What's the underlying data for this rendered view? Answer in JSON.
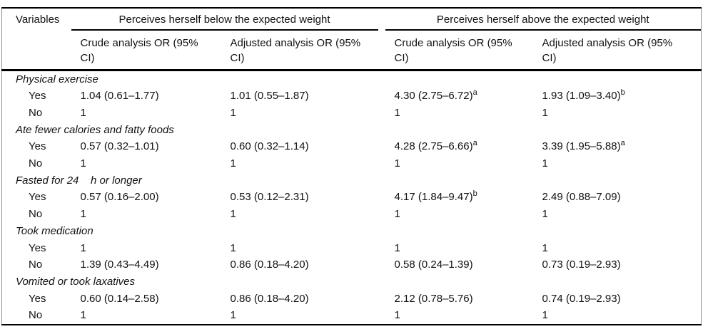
{
  "table": {
    "variables_header": "Variables",
    "col_groups": [
      {
        "label": "Perceives herself below the expected weight"
      },
      {
        "label": "Perceives herself above the expected weight"
      }
    ],
    "sub_headers": [
      {
        "line1": "Crude analysis OR (95%",
        "line2": "CI)"
      },
      {
        "line1": "Adjusted analysis OR (95%",
        "line2": "CI)"
      },
      {
        "line1": "Crude analysis OR (95%",
        "line2": "CI)"
      },
      {
        "line1": "Adjusted analysis OR (95%",
        "line2": "CI)"
      }
    ],
    "groups": [
      {
        "label": "Physical exercise",
        "rows": [
          {
            "label": "Yes",
            "values": [
              {
                "text": "1.04 (0.61–1.77)",
                "sup": ""
              },
              {
                "text": "1.01 (0.55–1.87)",
                "sup": ""
              },
              {
                "text": "4.30 (2.75–6.72)",
                "sup": "a"
              },
              {
                "text": "1.93 (1.09–3.40)",
                "sup": "b"
              }
            ]
          },
          {
            "label": "No",
            "values": [
              {
                "text": "1",
                "sup": ""
              },
              {
                "text": "1",
                "sup": ""
              },
              {
                "text": "1",
                "sup": ""
              },
              {
                "text": "1",
                "sup": ""
              }
            ]
          }
        ]
      },
      {
        "label": "Ate fewer calories and fatty foods",
        "rows": [
          {
            "label": "Yes",
            "values": [
              {
                "text": "0.57 (0.32–1.01)",
                "sup": ""
              },
              {
                "text": "0.60 (0.32–1.14)",
                "sup": ""
              },
              {
                "text": "4.28 (2.75–6.66)",
                "sup": "a"
              },
              {
                "text": "3.39 (1.95–5.88)",
                "sup": "a"
              }
            ]
          },
          {
            "label": "No",
            "values": [
              {
                "text": "1",
                "sup": ""
              },
              {
                "text": "1",
                "sup": ""
              },
              {
                "text": "1",
                "sup": ""
              },
              {
                "text": "1",
                "sup": ""
              }
            ]
          }
        ]
      },
      {
        "label": "Fasted for 24    h or longer",
        "rows": [
          {
            "label": "Yes",
            "values": [
              {
                "text": "0.57 (0.16–2.00)",
                "sup": ""
              },
              {
                "text": "0.53 (0.12–2.31)",
                "sup": ""
              },
              {
                "text": "4.17 (1.84–9.47)",
                "sup": "b"
              },
              {
                "text": "2.49 (0.88–7.09)",
                "sup": ""
              }
            ]
          },
          {
            "label": "No",
            "values": [
              {
                "text": "1",
                "sup": ""
              },
              {
                "text": "1",
                "sup": ""
              },
              {
                "text": "1",
                "sup": ""
              },
              {
                "text": "1",
                "sup": ""
              }
            ]
          }
        ]
      },
      {
        "label": "Took medication",
        "rows": [
          {
            "label": "Yes",
            "values": [
              {
                "text": "1",
                "sup": ""
              },
              {
                "text": "1",
                "sup": ""
              },
              {
                "text": "1",
                "sup": ""
              },
              {
                "text": "1",
                "sup": ""
              }
            ]
          },
          {
            "label": "No",
            "values": [
              {
                "text": "1.39 (0.43–4.49)",
                "sup": ""
              },
              {
                "text": "0.86 (0.18–4.20)",
                "sup": ""
              },
              {
                "text": "0.58 (0.24–1.39)",
                "sup": ""
              },
              {
                "text": "0.73 (0.19–2.93)",
                "sup": ""
              }
            ]
          }
        ]
      },
      {
        "label": "Vomited or took laxatives",
        "rows": [
          {
            "label": "Yes",
            "values": [
              {
                "text": "0.60 (0.14–2.58)",
                "sup": ""
              },
              {
                "text": "0.86 (0.18–4.20)",
                "sup": ""
              },
              {
                "text": "2.12 (0.78–5.76)",
                "sup": ""
              },
              {
                "text": "0.74 (0.19–2.93)",
                "sup": ""
              }
            ]
          },
          {
            "label": "No",
            "values": [
              {
                "text": "1",
                "sup": ""
              },
              {
                "text": "1",
                "sup": ""
              },
              {
                "text": "1",
                "sup": ""
              },
              {
                "text": "1",
                "sup": ""
              }
            ]
          }
        ]
      }
    ]
  }
}
